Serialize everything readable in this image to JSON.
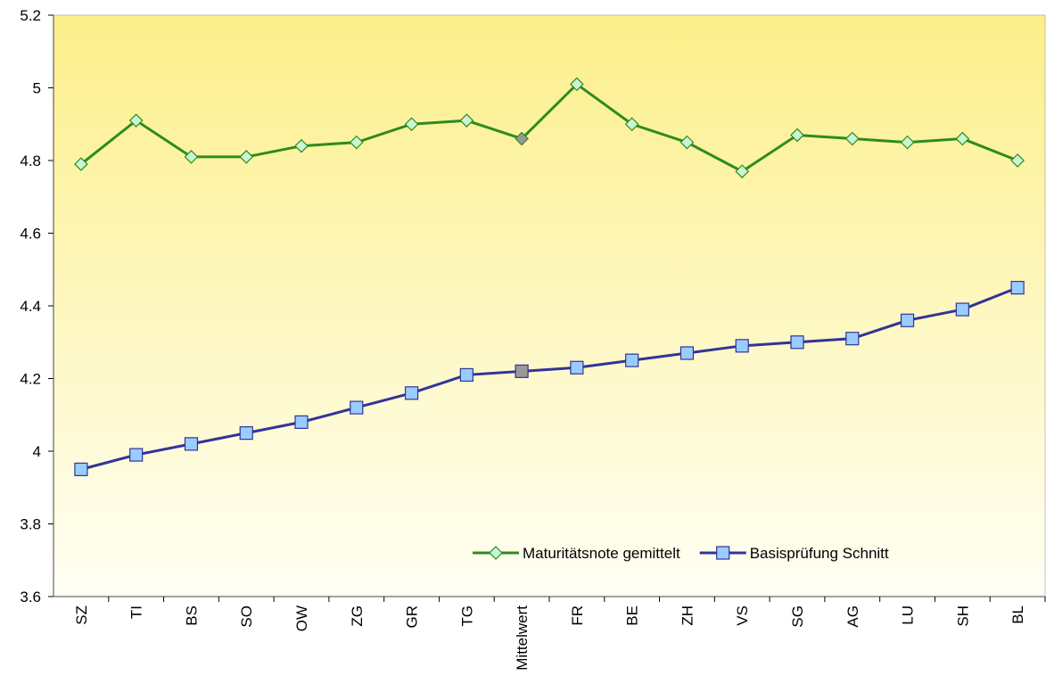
{
  "chart_data": {
    "type": "line",
    "categories": [
      "SZ",
      "TI",
      "BS",
      "SO",
      "OW",
      "ZG",
      "GR",
      "TG",
      "Mittelwert",
      "FR",
      "BE",
      "ZH",
      "VS",
      "SG",
      "AG",
      "LU",
      "SH",
      "BL"
    ],
    "series": [
      {
        "name": "Maturitätsnote gemittelt",
        "color": "#2e8b1e",
        "marker": "diamond",
        "marker_fill": "#c8f5d2",
        "values": [
          4.79,
          4.91,
          4.81,
          4.81,
          4.84,
          4.85,
          4.9,
          4.91,
          4.86,
          5.01,
          4.9,
          4.85,
          4.77,
          4.87,
          4.86,
          4.85,
          4.86,
          4.8
        ]
      },
      {
        "name": "Basisprüfung Schnitt",
        "color": "#333399",
        "marker": "square",
        "marker_fill": "#99ccff",
        "values": [
          3.95,
          3.99,
          4.02,
          4.05,
          4.08,
          4.12,
          4.16,
          4.21,
          4.22,
          4.23,
          4.25,
          4.27,
          4.29,
          4.3,
          4.31,
          4.36,
          4.39,
          4.45
        ]
      }
    ],
    "highlight_category": "Mittelwert",
    "highlight_color": "#999999",
    "ylim": [
      3.6,
      5.2
    ],
    "yticks": [
      3.6,
      3.8,
      4,
      4.2,
      4.4,
      4.6,
      4.8,
      5,
      5.2
    ],
    "grid": false,
    "legend": "lower right"
  }
}
